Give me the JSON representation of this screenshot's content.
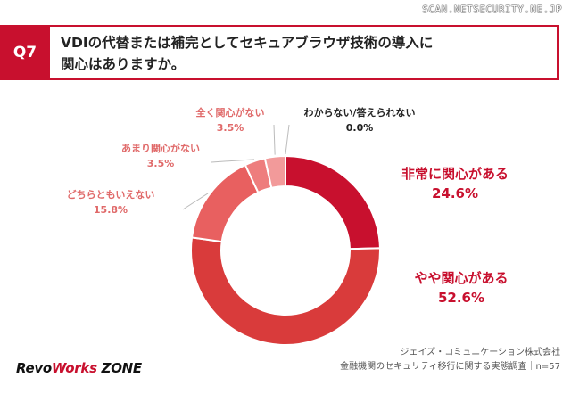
{
  "header": {
    "watermark": "SCAN.NETSECURITY.NE.JP",
    "question_number": "Q7",
    "question_line1": "VDIの代替または補完としてセキュアブラウザ技術の導入に",
    "question_line2": "関心はありますか。"
  },
  "chart_data": {
    "type": "pie",
    "donut": true,
    "start_angle_deg": 0,
    "direction": "clockwise",
    "slices": [
      {
        "name": "非常に関心がある",
        "value": 24.6,
        "label": "24.6%",
        "color": "#c8102e"
      },
      {
        "name": "やや関心がある",
        "value": 52.6,
        "label": "52.6%",
        "color": "#d93b3b"
      },
      {
        "name": "どちらともいえない",
        "value": 15.8,
        "label": "15.8%",
        "color": "#e86060"
      },
      {
        "name": "あまり関心がない",
        "value": 3.5,
        "label": "3.5%",
        "color": "#ee7d7d"
      },
      {
        "name": "全く関心がない",
        "value": 3.5,
        "label": "3.5%",
        "color": "#f29a9a"
      },
      {
        "name": "わからない/答えられない",
        "value": 0.0,
        "label": "0.0%",
        "color": "#ffffff"
      }
    ],
    "label_colors": {
      "major": "#c8102e",
      "minor": "#e06a6a",
      "none": "#222222"
    }
  },
  "footer": {
    "logo_part1": "Revo",
    "logo_part2": "Works",
    "logo_part3": " ZONE",
    "source_line1": "ジェイズ・コミュニケーション株式会社",
    "source_line2": "金融機関のセキュリティ移行に関する実態調査｜n=57"
  }
}
